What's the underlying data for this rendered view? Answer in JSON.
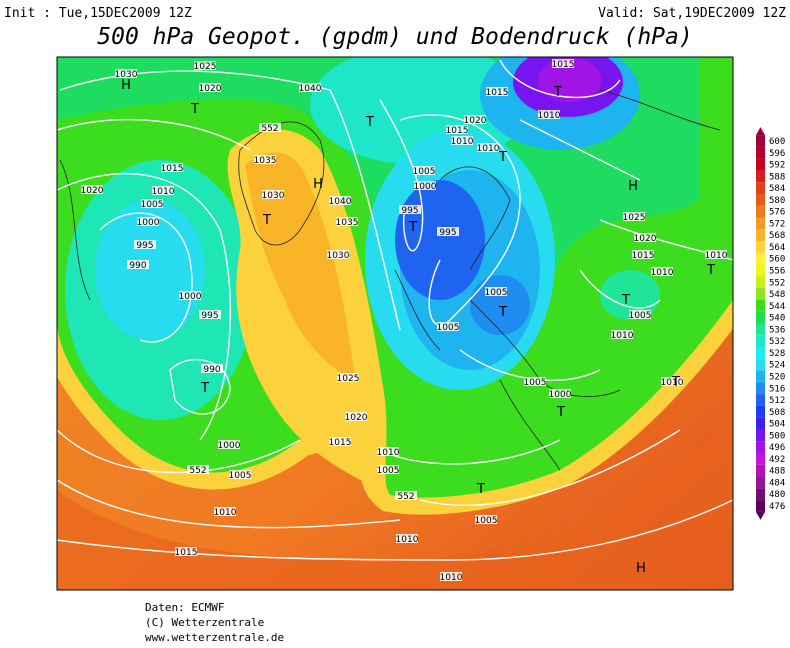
{
  "header": {
    "init": "Init : Tue,15DEC2009 12Z",
    "valid": "Valid: Sat,19DEC2009 12Z",
    "title": "500 hPa Geopot. (gpdm) und Bodendruck (hPa)"
  },
  "colorbar": {
    "levels": [
      {
        "value": 600,
        "color": "#9b0041"
      },
      {
        "value": 596,
        "color": "#b30028"
      },
      {
        "value": 592,
        "color": "#c8001e"
      },
      {
        "value": 588,
        "color": "#d81e1e"
      },
      {
        "value": 584,
        "color": "#e0401e"
      },
      {
        "value": 580,
        "color": "#e65a1e"
      },
      {
        "value": 576,
        "color": "#ee7a1e"
      },
      {
        "value": 572,
        "color": "#f59a28"
      },
      {
        "value": 568,
        "color": "#f9b428"
      },
      {
        "value": 564,
        "color": "#fdd23c"
      },
      {
        "value": 560,
        "color": "#fff03c"
      },
      {
        "value": 556,
        "color": "#f0f51e"
      },
      {
        "value": 552,
        "color": "#c8f01e"
      },
      {
        "value": 548,
        "color": "#8ce61e"
      },
      {
        "value": 544,
        "color": "#3cdc1e"
      },
      {
        "value": 540,
        "color": "#1edc50"
      },
      {
        "value": 536,
        "color": "#1ee696"
      },
      {
        "value": 532,
        "color": "#1ee6c8"
      },
      {
        "value": 528,
        "color": "#1ef0f0"
      },
      {
        "value": 524,
        "color": "#28dcf0"
      },
      {
        "value": 520,
        "color": "#1eb4f0"
      },
      {
        "value": 516,
        "color": "#1e8cf0"
      },
      {
        "value": 512,
        "color": "#1e64f0"
      },
      {
        "value": 508,
        "color": "#1e3cf0"
      },
      {
        "value": 504,
        "color": "#3c1ef0"
      },
      {
        "value": 500,
        "color": "#7814f0"
      },
      {
        "value": 496,
        "color": "#a014e6"
      },
      {
        "value": 492,
        "color": "#c814dc"
      },
      {
        "value": 488,
        "color": "#b414b4"
      },
      {
        "value": 484,
        "color": "#961496"
      },
      {
        "value": 480,
        "color": "#780a78"
      },
      {
        "value": 476,
        "color": "#5a005a"
      }
    ]
  },
  "map": {
    "labels": [
      "1030",
      "H",
      "1025",
      "1020",
      "T",
      "552",
      "1040",
      "T",
      "1035",
      "H",
      "1030",
      "T",
      "1040",
      "1035",
      "1030",
      "1015",
      "1020",
      "1010",
      "1005",
      "1000",
      "995",
      "990",
      "1000",
      "995",
      "990",
      "T",
      "1025",
      "1020",
      "1015",
      "1010",
      "1005",
      "1000",
      "1005",
      "552",
      "552",
      "1010",
      "1015",
      "1010",
      "1010",
      "1005",
      "T",
      "1015",
      "T",
      "1015",
      "1010",
      "1020",
      "1015",
      "1010",
      "1010",
      "T",
      "1005",
      "1000",
      "995",
      "T",
      "995",
      "H",
      "1025",
      "1020",
      "1015",
      "1010",
      "1010",
      "T",
      "T",
      "1005",
      "1010",
      "1005",
      "T",
      "1005",
      "1005",
      "1000",
      "T",
      "1010",
      "T",
      "H"
    ]
  },
  "footer": {
    "lines": [
      "Daten: ECMWF",
      "(C) Wetterzentrale",
      "www.wetterzentrale.de"
    ]
  }
}
